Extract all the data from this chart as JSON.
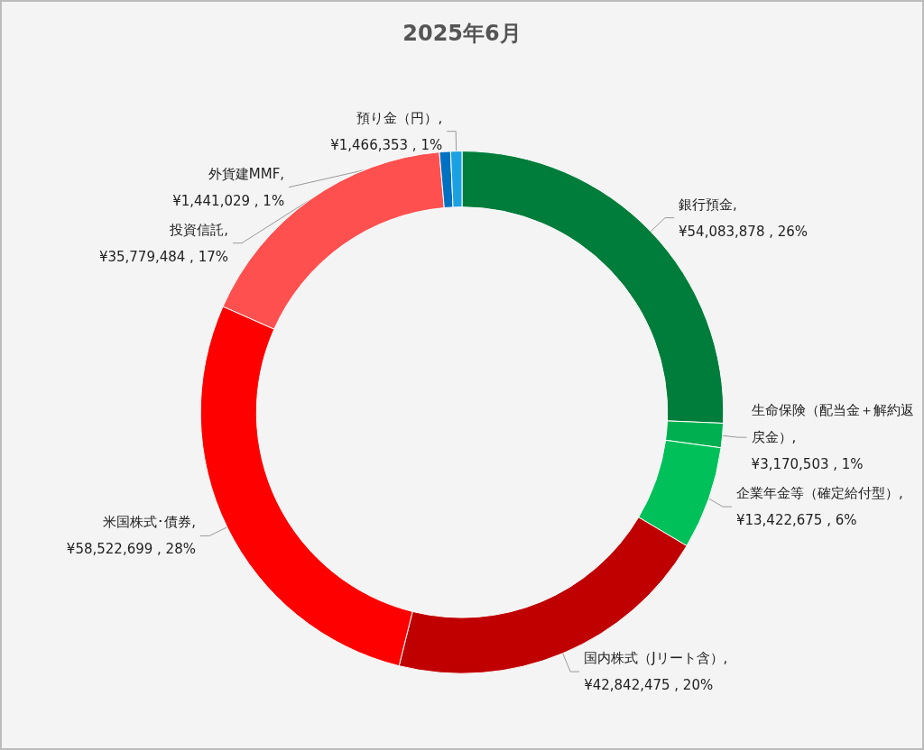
{
  "chart_data": {
    "type": "donut",
    "title": "2025年6月",
    "categories": [
      "銀行預金",
      "生命保険（配当金＋解約返戻金）",
      "企業年金等（確定給付型）",
      "国内株式（Jリート含）",
      "米国株式･債券",
      "投資信託",
      "外貨建MMF",
      "預り金（円）"
    ],
    "values": [
      54083878,
      3170503,
      13422675,
      42842475,
      58522699,
      35779484,
      1441029,
      1466353
    ],
    "value_labels": [
      ", ¥54,083,878 , 26%",
      ", ¥3,170,503 , 1%",
      ", ¥13,422,675 , 6%",
      ", ¥42,842,475 , 20%",
      ", ¥58,522,699 , 28%",
      ", ¥35,779,484 , 17%",
      ", ¥1,441,029 , 1%",
      ", ¥1,466,353 , 1%"
    ],
    "colors": [
      "#007d3a",
      "#00b050",
      "#00c05a",
      "#c00000",
      "#ff0000",
      "#ff5050",
      "#0070c0",
      "#1ba1e2"
    ],
    "legend": false
  }
}
